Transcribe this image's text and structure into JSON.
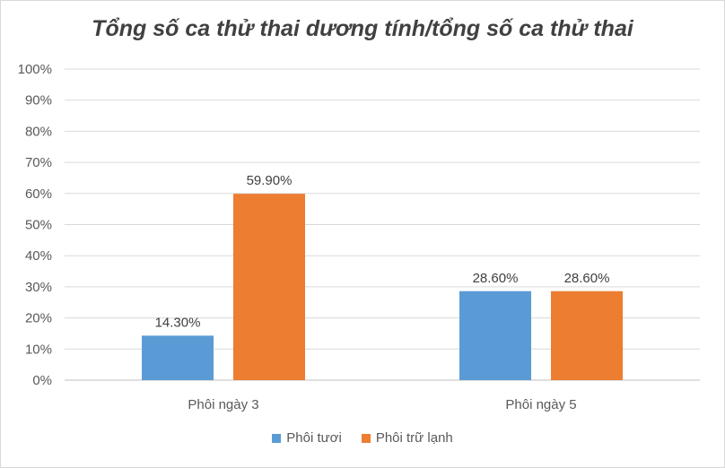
{
  "chart_data": {
    "type": "bar",
    "title": "Tổng số ca thử thai dương tính/tổng số ca thử thai",
    "categories": [
      "Phôi ngày 3",
      "Phôi ngày 5"
    ],
    "series": [
      {
        "name": "Phôi tươi",
        "color": "#5b9bd5",
        "values": [
          14.3,
          28.6
        ],
        "labels": [
          "14.30%",
          "28.60%"
        ]
      },
      {
        "name": "Phôi trữ lạnh",
        "color": "#ed7d31",
        "values": [
          59.9,
          28.6
        ],
        "labels": [
          "59.90%",
          "28.60%"
        ]
      }
    ],
    "ylim": [
      0,
      100
    ],
    "yticks": [
      "0%",
      "10%",
      "20%",
      "30%",
      "40%",
      "50%",
      "60%",
      "70%",
      "80%",
      "90%",
      "100%"
    ],
    "grid": true,
    "legend_position": "bottom"
  }
}
